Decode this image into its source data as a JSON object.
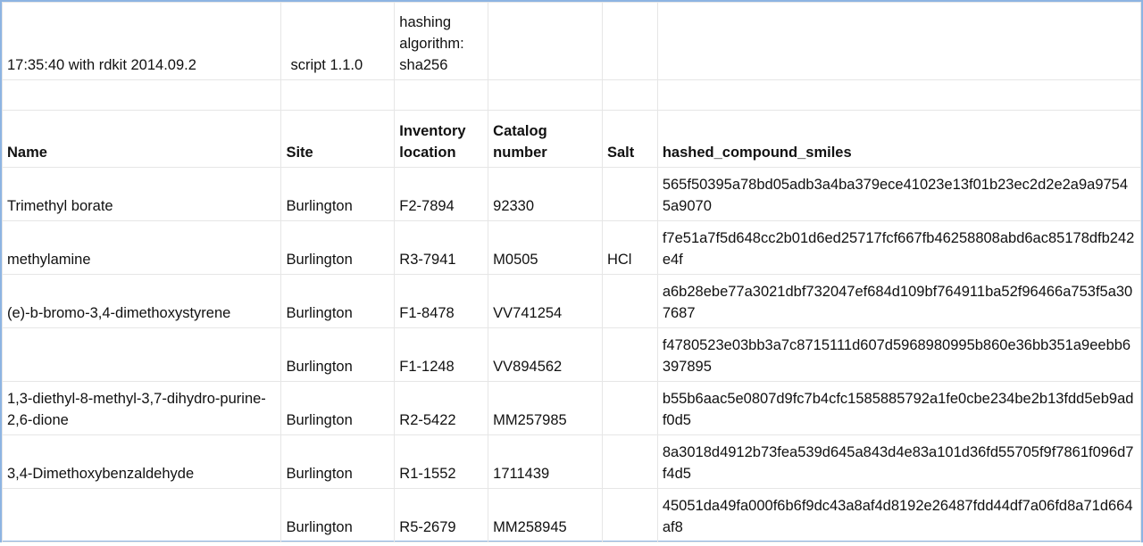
{
  "meta": {
    "timestamp": "17:35:40 with rdkit 2014.09.2",
    "script": "script 1.1.0",
    "hashing": "hashing algorithm: sha256"
  },
  "columns": [
    "Name",
    "Site",
    "Inventory location",
    "Catalog number",
    "Salt",
    "hashed_compound_smiles"
  ],
  "rows": [
    {
      "name": "Trimethyl borate",
      "site": "Burlington",
      "location": "F2-7894",
      "catalog": "92330",
      "salt": "",
      "hash": "565f50395a78bd05adb3a4ba379ece41023e13f01b23ec2d2e2a9a97545a9070"
    },
    {
      "name": "methylamine",
      "site": "Burlington",
      "location": "R3-7941",
      "catalog": "M0505",
      "salt": "HCl",
      "hash": "f7e51a7f5d648cc2b01d6ed25717fcf667fb46258808abd6ac85178dfb242e4f"
    },
    {
      "name": "(e)-b-bromo-3,4-dimethoxystyrene",
      "site": "Burlington",
      "location": "F1-8478",
      "catalog": "VV741254",
      "salt": "",
      "hash": "a6b28ebe77a3021dbf732047ef684d109bf764911ba52f96466a753f5a307687"
    },
    {
      "name": "",
      "site": "Burlington",
      "location": "F1-1248",
      "catalog": "VV894562",
      "salt": "",
      "hash": "f4780523e03bb3a7c8715111d607d5968980995b860e36bb351a9eebb6397895"
    },
    {
      "name": "1,3-diethyl-8-methyl-3,7-dihydro-purine-2,6-dione",
      "site": "Burlington",
      "location": "R2-5422",
      "catalog": "MM257985",
      "salt": "",
      "hash": "b55b6aac5e0807d9fc7b4cfc1585885792a1fe0cbe234be2b13fdd5eb9adf0d5"
    },
    {
      "name": "3,4-Dimethoxybenzaldehyde",
      "site": "Burlington",
      "location": "R1-1552",
      "catalog": "1711439",
      "salt": "",
      "hash": "8a3018d4912b73fea539d645a843d4e83a101d36fd55705f9f7861f096d7f4d5"
    },
    {
      "name": "",
      "site": "Burlington",
      "location": "R5-2679",
      "catalog": "MM258945",
      "salt": "",
      "hash": "45051da49fa000f6b6f9dc43a8af4d8192e26487fdd44df7a06fd8a71d664af8"
    }
  ]
}
